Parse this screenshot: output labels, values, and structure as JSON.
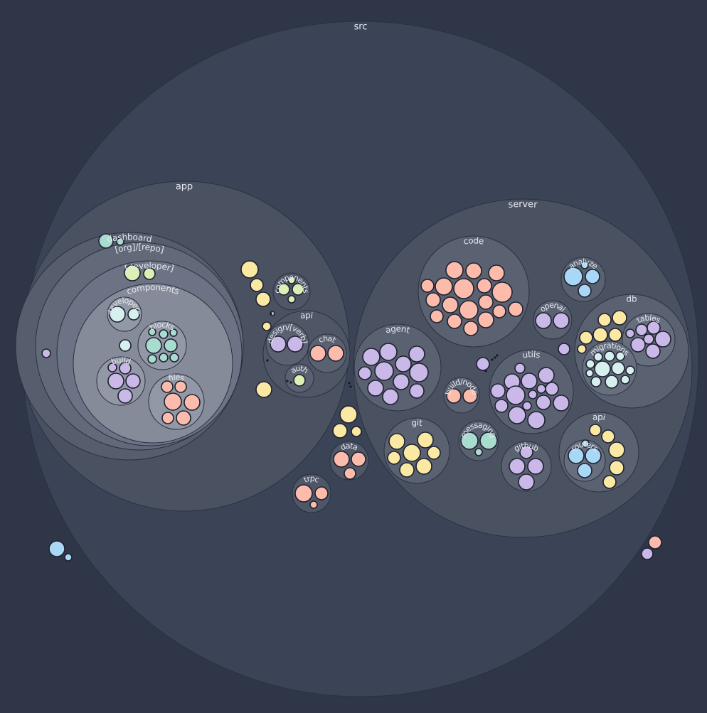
{
  "chart_data": {
    "type": "circle-packing",
    "colors": {
      "background": "#2e3648",
      "ts": "#c9b8e8",
      "tsx": "#fdbcab",
      "json": "#fbe9a3",
      "css": "#a8d8f5",
      "md": "#dcefb5",
      "svg": "#a8dccf",
      "other": "#d6f0ee"
    },
    "labels": {
      "src": "src",
      "app": "app",
      "dashboard": "dashboard",
      "org_repo": "[org]/[repo]",
      "developer": "[developer]",
      "components_inner": "components",
      "developers": "developers",
      "blocks": "blocks",
      "build": "build",
      "files": "files",
      "components": "components",
      "api": "api",
      "design_verb": "design/[verb]",
      "chat": "chat",
      "auth": "auth",
      "data": "data",
      "trpc": "trpc",
      "server": "server",
      "code": "code",
      "analyze": "analyze",
      "openai": "openai",
      "db": "db",
      "tables": "tables",
      "migrations": "migrations",
      "agent": "agent",
      "utils": "utils",
      "build_node": "build/node",
      "git": "git",
      "messaging": "messaging",
      "github": "github",
      "server_api": "api",
      "routers": "routers"
    }
  }
}
